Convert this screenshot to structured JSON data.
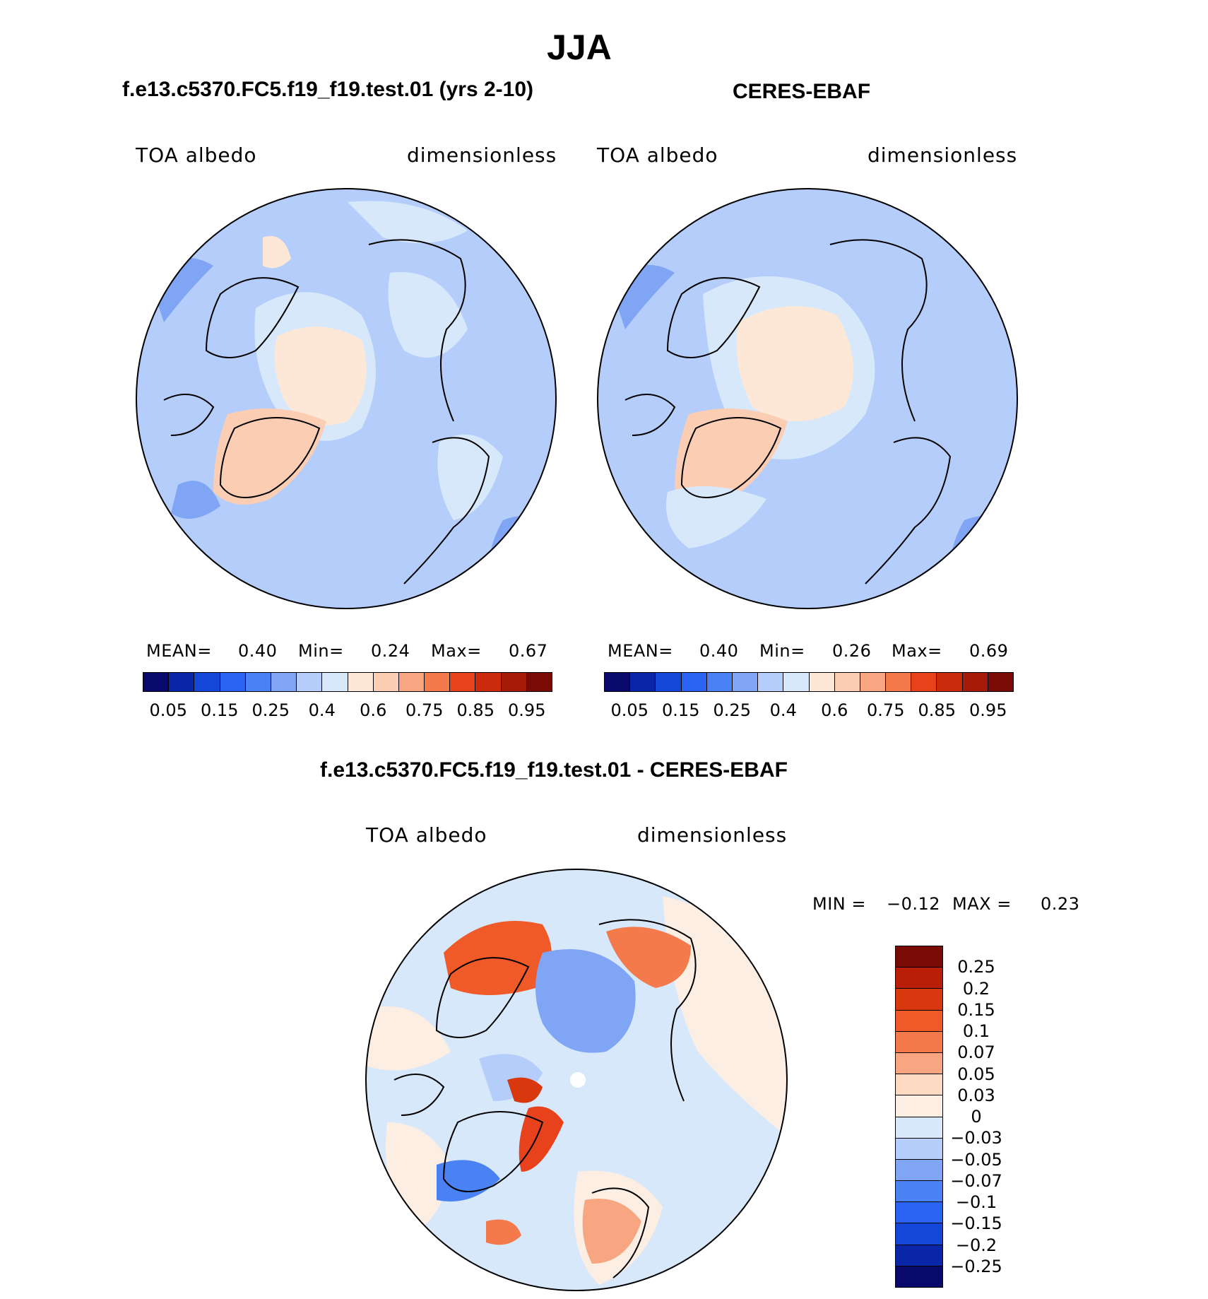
{
  "title": "JJA",
  "panels": [
    {
      "title": "f.e13.c5370.FC5.f19_f19.test.01 (yrs 2-10)",
      "left_label": "TOA albedo",
      "right_label": "dimensionless",
      "mean_label": "MEAN=",
      "mean": "0.40",
      "min_label": "Min=",
      "min": "0.24",
      "max_label": "Max=",
      "max": "0.67"
    },
    {
      "title": "CERES-EBAF",
      "left_label": "TOA albedo",
      "right_label": "dimensionless",
      "mean_label": "MEAN=",
      "mean": "0.40",
      "min_label": "Min=",
      "min": "0.26",
      "max_label": "Max=",
      "max": "0.69"
    }
  ],
  "diff_panel": {
    "title": "f.e13.c5370.FC5.f19_f19.test.01 - CERES-EBAF",
    "left_label": "TOA albedo",
    "right_label": "dimensionless",
    "min_label": "MIN =",
    "min": "−0.12",
    "max_label": "MAX =",
    "max": "0.23"
  },
  "chart_data": [
    {
      "type": "heatmap",
      "projection": "north polar stereographic",
      "season": "JJA",
      "variable": "TOA albedo",
      "units": "dimensionless",
      "colorbar_ticks": [
        "0.05",
        "0.15",
        "0.25",
        "0.4",
        "0.6",
        "0.75",
        "0.85",
        "0.95"
      ],
      "colorbar_colors": [
        "#08096b",
        "#0a26a8",
        "#1446d8",
        "#2a63f2",
        "#4a82f4",
        "#7fa5f4",
        "#b5cdfa",
        "#d8e8fb",
        "#fde8d8",
        "#fbcdb3",
        "#f8a682",
        "#f47a4c",
        "#e8421c",
        "#cc2a0c",
        "#a61b08",
        "#7a0a05"
      ]
    },
    {
      "type": "heatmap",
      "projection": "north polar stereographic",
      "variable": "TOA albedo difference",
      "units": "dimensionless",
      "colorbar_ticks": [
        "0.25",
        "0.2",
        "0.15",
        "0.1",
        "0.07",
        "0.05",
        "0.03",
        "0",
        "−0.03",
        "−0.05",
        "−0.07",
        "−0.1",
        "−0.15",
        "−0.2",
        "−0.25"
      ],
      "colorbar_colors": [
        "#7a0a05",
        "#b81e08",
        "#d9380f",
        "#f05a28",
        "#f47a4c",
        "#f8a682",
        "#fdd9c2",
        "#fdeee3",
        "#d8e8fb",
        "#b5cdfa",
        "#7fa5f4",
        "#4a82f4",
        "#2a63f2",
        "#1446d8",
        "#0a26a8",
        "#08096b"
      ]
    }
  ]
}
